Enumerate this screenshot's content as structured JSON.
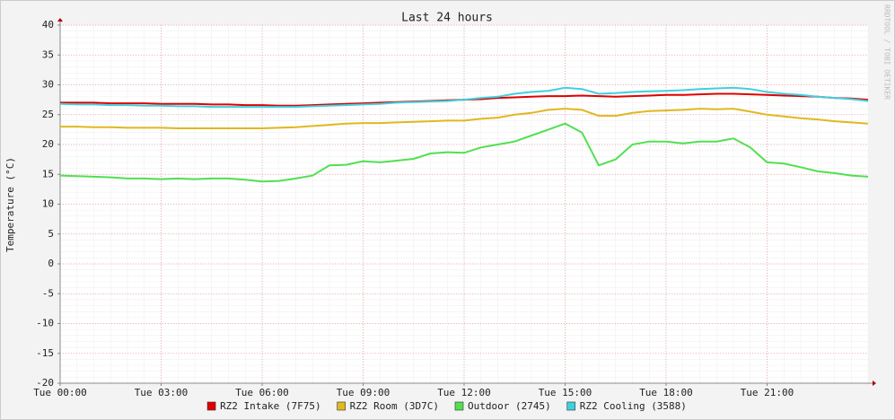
{
  "chart_data": {
    "type": "line",
    "title": "Last 24 hours",
    "y_label": "Temperature (°C)",
    "watermark": "RRDTOOL / TOBI OETIKER",
    "x": [
      0,
      0.5,
      1,
      1.5,
      2,
      2.5,
      3,
      3.5,
      4,
      4.5,
      5,
      5.5,
      6,
      6.5,
      7,
      7.5,
      8,
      8.5,
      9,
      9.5,
      10,
      10.5,
      11,
      11.5,
      12,
      12.5,
      13,
      13.5,
      14,
      14.5,
      15,
      15.5,
      16,
      16.5,
      17,
      17.5,
      18,
      18.5,
      19,
      19.5,
      20,
      20.5,
      21,
      21.5,
      22,
      22.5,
      23,
      23.5,
      24
    ],
    "xlim": [
      0,
      24
    ],
    "xticks": [
      {
        "value": 0,
        "label": "Tue 00:00"
      },
      {
        "value": 3,
        "label": "Tue 03:00"
      },
      {
        "value": 6,
        "label": "Tue 06:00"
      },
      {
        "value": 9,
        "label": "Tue 09:00"
      },
      {
        "value": 12,
        "label": "Tue 12:00"
      },
      {
        "value": 15,
        "label": "Tue 15:00"
      },
      {
        "value": 18,
        "label": "Tue 18:00"
      },
      {
        "value": 21,
        "label": "Tue 21:00"
      }
    ],
    "ylim": [
      -20,
      40
    ],
    "yticks": [
      40,
      35,
      30,
      25,
      20,
      15,
      10,
      5,
      0,
      -5,
      -10,
      -15,
      -20
    ],
    "grid": true,
    "series": [
      {
        "name": "RZ2 Intake (7F75)",
        "color": "#e00000",
        "values": [
          27.0,
          27.0,
          27.0,
          26.9,
          26.9,
          26.9,
          26.8,
          26.8,
          26.8,
          26.7,
          26.7,
          26.6,
          26.6,
          26.5,
          26.5,
          26.6,
          26.7,
          26.8,
          26.9,
          27.0,
          27.1,
          27.2,
          27.3,
          27.4,
          27.5,
          27.6,
          27.8,
          27.9,
          28.0,
          28.1,
          28.1,
          28.2,
          28.1,
          28.0,
          28.1,
          28.2,
          28.3,
          28.3,
          28.4,
          28.5,
          28.5,
          28.4,
          28.3,
          28.2,
          28.1,
          28.0,
          27.8,
          27.7,
          27.5
        ]
      },
      {
        "name": "RZ2 Room (3D7C)",
        "color": "#e0b820",
        "values": [
          23.0,
          23.0,
          22.9,
          22.9,
          22.8,
          22.8,
          22.8,
          22.7,
          22.7,
          22.7,
          22.7,
          22.7,
          22.7,
          22.8,
          22.9,
          23.1,
          23.3,
          23.5,
          23.6,
          23.6,
          23.7,
          23.8,
          23.9,
          24.0,
          24.0,
          24.3,
          24.5,
          25.0,
          25.3,
          25.8,
          26.0,
          25.8,
          24.8,
          24.8,
          25.3,
          25.6,
          25.7,
          25.8,
          26.0,
          25.9,
          26.0,
          25.5,
          25.0,
          24.7,
          24.4,
          24.2,
          23.9,
          23.7,
          23.5
        ]
      },
      {
        "name": "Outdoor (2745)",
        "color": "#50e050",
        "values": [
          14.8,
          14.7,
          14.6,
          14.5,
          14.3,
          14.3,
          14.2,
          14.3,
          14.2,
          14.3,
          14.3,
          14.1,
          13.8,
          13.9,
          14.3,
          14.8,
          16.5,
          16.6,
          17.2,
          17.0,
          17.3,
          17.6,
          18.5,
          18.7,
          18.6,
          19.5,
          20.0,
          20.5,
          21.5,
          22.5,
          23.5,
          22.0,
          16.5,
          17.5,
          20.0,
          20.5,
          20.5,
          20.2,
          20.5,
          20.5,
          21.0,
          19.5,
          17.0,
          16.8,
          16.2,
          15.5,
          15.2,
          14.8,
          14.6
        ]
      },
      {
        "name": "RZ2 Cooling (3588)",
        "color": "#40d0e0",
        "values": [
          26.8,
          26.7,
          26.7,
          26.6,
          26.6,
          26.5,
          26.5,
          26.4,
          26.4,
          26.3,
          26.3,
          26.3,
          26.3,
          26.3,
          26.3,
          26.4,
          26.5,
          26.6,
          26.7,
          26.8,
          27.0,
          27.1,
          27.2,
          27.3,
          27.5,
          27.8,
          28.0,
          28.5,
          28.8,
          29.0,
          29.5,
          29.3,
          28.5,
          28.6,
          28.8,
          28.9,
          29.0,
          29.1,
          29.3,
          29.4,
          29.5,
          29.3,
          28.8,
          28.5,
          28.3,
          28.0,
          27.8,
          27.6,
          27.3
        ]
      }
    ]
  }
}
